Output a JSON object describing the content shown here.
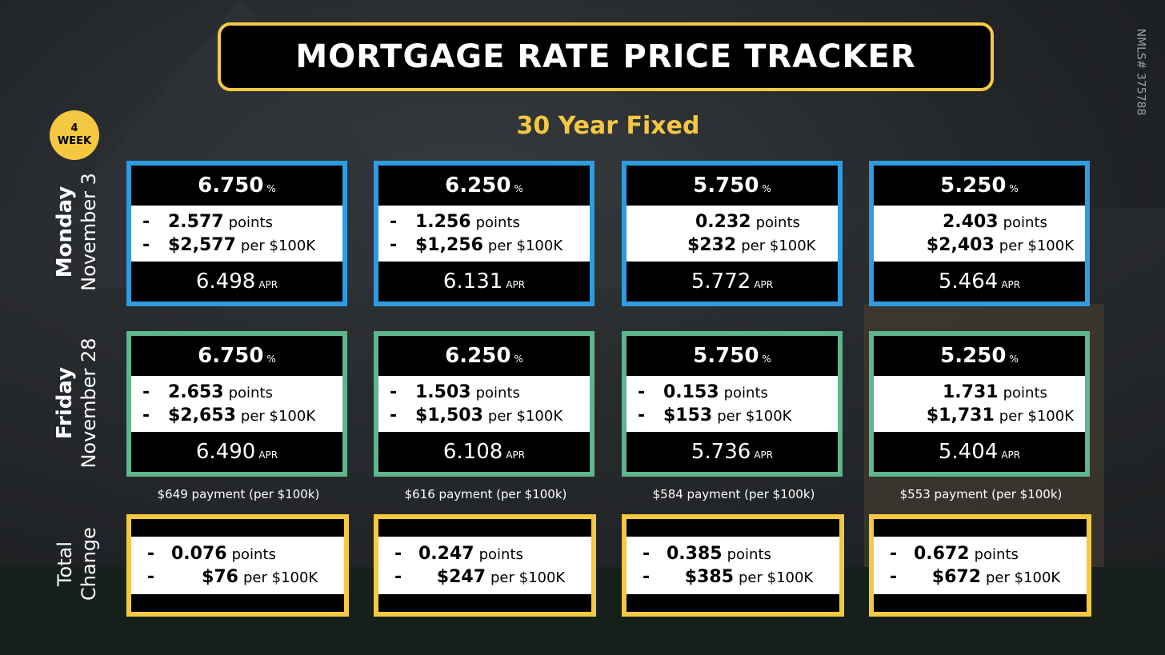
{
  "title": "MORTGAGE RATE PRICE TRACKER",
  "subtitle": "30 Year Fixed",
  "nmls": "NMLS# 375788",
  "badge": {
    "line1": "4",
    "line2": "WEEK"
  },
  "row_labels": {
    "monday": {
      "day": "Monday",
      "date": "November 3"
    },
    "friday": {
      "day": "Friday",
      "date": "November 28"
    },
    "total": {
      "line1": "Total",
      "line2": "Change"
    }
  },
  "units": {
    "percent": "%",
    "points": "points",
    "per": "per $100K",
    "apr": "APR"
  },
  "monday": [
    {
      "rate": "6.750",
      "dash": "-",
      "points": "2.577",
      "dollars": "$2,577",
      "apr": "6.498"
    },
    {
      "rate": "6.250",
      "dash": "-",
      "points": "1.256",
      "dollars": "$1,256",
      "apr": "6.131"
    },
    {
      "rate": "5.750",
      "dash": "",
      "points": "0.232",
      "dollars": "$232",
      "apr": "5.772"
    },
    {
      "rate": "5.250",
      "dash": "",
      "points": "2.403",
      "dollars": "$2,403",
      "apr": "5.464"
    }
  ],
  "friday": [
    {
      "rate": "6.750",
      "dash": "-",
      "points": "2.653",
      "dollars": "$2,653",
      "apr": "6.490"
    },
    {
      "rate": "6.250",
      "dash": "-",
      "points": "1.503",
      "dollars": "$1,503",
      "apr": "6.108"
    },
    {
      "rate": "5.750",
      "dash": "-",
      "points": "0.153",
      "dollars": "$153",
      "apr": "5.736"
    },
    {
      "rate": "5.250",
      "dash": "",
      "points": "1.731",
      "dollars": "$1,731",
      "apr": "5.404"
    }
  ],
  "payments": [
    "$649 payment (per $100k)",
    "$616 payment (per $100k)",
    "$584 payment (per $100k)",
    "$553 payment (per $100k)"
  ],
  "total_change": [
    {
      "dash": "-",
      "points": "0.076",
      "dollars": "$76"
    },
    {
      "dash": "-",
      "points": "0.247",
      "dollars": "$247"
    },
    {
      "dash": "-",
      "points": "0.385",
      "dollars": "$385"
    },
    {
      "dash": "-",
      "points": "0.672",
      "dollars": "$672"
    }
  ],
  "colors": {
    "accent": "#f5c842",
    "monday_border": "#2f9be0",
    "friday_border": "#5fb58d"
  }
}
